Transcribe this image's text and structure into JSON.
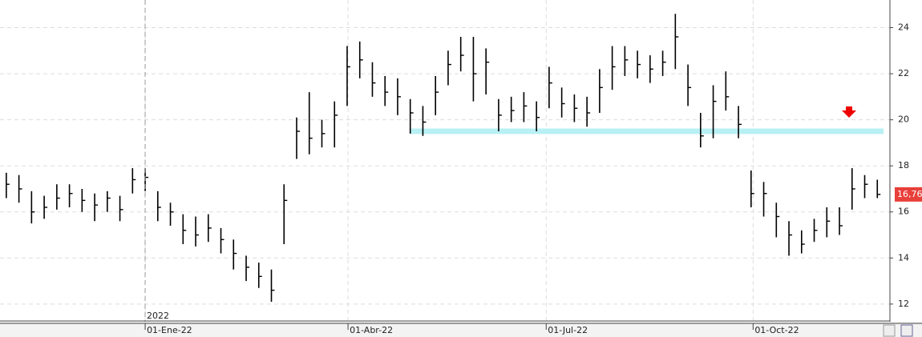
{
  "chart_data": {
    "type": "ohlc",
    "color": "#000000",
    "support_level": 19.5,
    "support_color": "#b8f0f4",
    "year_label": "2022",
    "last_price": {
      "value": 16.76,
      "label": "16,76"
    },
    "last_price_color": "#e8403a",
    "xlim": [
      -0.5,
      70
    ],
    "xticks": [
      {
        "value": 11.0,
        "label": "01-Ene-22"
      },
      {
        "value": 27.07,
        "label": "01-Abr-22"
      },
      {
        "value": 42.77,
        "label": "01-Jul-22"
      },
      {
        "value": 59.16,
        "label": "01-Oct-22"
      }
    ],
    "ylim": [
      11.3,
      25.2
    ],
    "yticks": [
      12,
      14,
      16,
      18,
      20,
      22,
      24
    ],
    "grid": true,
    "high": [
      17.7,
      17.6,
      16.9,
      16.7,
      17.2,
      17.2,
      17.0,
      16.8,
      16.9,
      16.7,
      17.9,
      17.9,
      16.9,
      16.4,
      15.9,
      15.8,
      15.9,
      15.3,
      14.8,
      14.1,
      13.8,
      13.5,
      17.2,
      20.1,
      21.2,
      20.0,
      20.8,
      23.2,
      23.4,
      22.5,
      21.9,
      21.8,
      20.9,
      20.6,
      21.9,
      23.0,
      23.6,
      23.6,
      23.1,
      20.9,
      21.0,
      21.2,
      20.8,
      22.3,
      21.4,
      21.1,
      21.0,
      22.2,
      23.2,
      23.2,
      23.0,
      22.8,
      23.0,
      24.6,
      22.4,
      20.3,
      21.5,
      22.1,
      20.6,
      17.8,
      17.3,
      16.4,
      15.6,
      15.2,
      15.7,
      16.2,
      16.2,
      17.9,
      17.6,
      17.4
    ],
    "low": [
      16.6,
      16.4,
      15.5,
      15.7,
      16.1,
      16.2,
      16.0,
      15.6,
      16.0,
      15.6,
      16.8,
      16.9,
      15.6,
      15.4,
      14.6,
      14.5,
      14.7,
      14.2,
      13.5,
      13.0,
      12.7,
      12.1,
      14.6,
      18.3,
      18.5,
      18.8,
      18.8,
      20.6,
      21.8,
      21.0,
      20.6,
      20.2,
      19.4,
      19.3,
      20.2,
      21.5,
      22.1,
      20.8,
      21.1,
      19.5,
      19.9,
      19.9,
      19.5,
      20.5,
      20.1,
      19.9,
      19.7,
      20.3,
      21.3,
      21.9,
      21.8,
      21.6,
      21.9,
      22.2,
      20.6,
      18.8,
      19.2,
      20.4,
      19.2,
      16.2,
      15.8,
      14.9,
      14.1,
      14.2,
      14.7,
      14.9,
      15.0,
      16.1,
      16.6,
      16.6
    ],
    "close": [
      17.2,
      17.0,
      16.0,
      16.2,
      16.6,
      16.8,
      16.5,
      16.3,
      16.6,
      16.1,
      17.4,
      17.5,
      16.2,
      16.0,
      15.2,
      15.0,
      15.3,
      14.8,
      14.2,
      13.6,
      13.2,
      12.6,
      16.5,
      19.5,
      19.2,
      19.4,
      20.2,
      22.3,
      22.6,
      21.6,
      21.2,
      21.0,
      20.3,
      19.9,
      21.2,
      22.4,
      22.8,
      22.0,
      22.5,
      20.2,
      20.4,
      20.6,
      20.1,
      21.6,
      20.7,
      20.5,
      20.3,
      21.4,
      22.3,
      22.6,
      22.4,
      22.2,
      22.5,
      23.6,
      21.4,
      19.3,
      20.8,
      21.0,
      19.8,
      16.8,
      16.8,
      15.8,
      15.0,
      14.6,
      15.2,
      15.6,
      15.4,
      17.0,
      17.2,
      16.76
    ]
  }
}
